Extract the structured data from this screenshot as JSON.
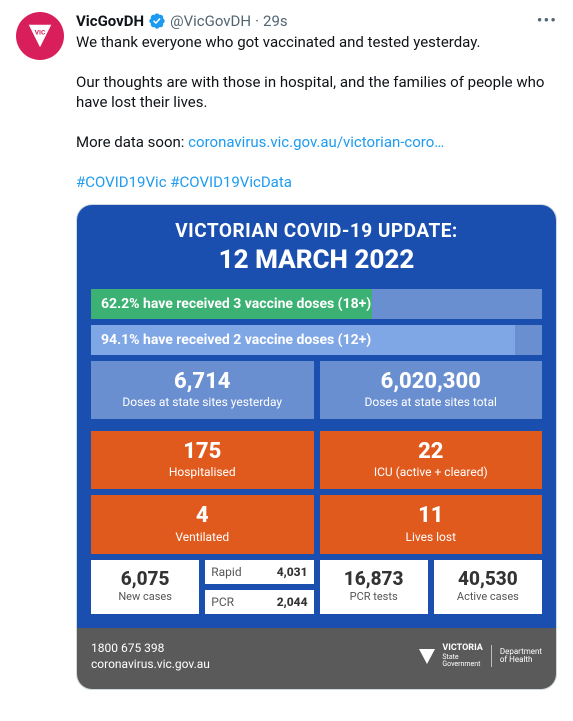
{
  "tweet": {
    "display_name": "VicGovDH",
    "handle": "@VicGovDH",
    "separator": "·",
    "time": "29s",
    "text_line1": "We thank everyone who got vaccinated and tested yesterday.",
    "text_line2": "Our thoughts are with those in hospital, and the families of people who have lost their lives.",
    "text_line3_prefix": "More data soon: ",
    "link_text": "coronavirus.vic.gov.au/victorian-coro…",
    "hashtag1": "#COVID19Vic",
    "hashtag2": "#COVID19VicData"
  },
  "card": {
    "colors": {
      "bg_main": "#1a4fb0",
      "footer_bg": "#5a5a5a",
      "bar_track": "#6a8fd0",
      "bar1_fill": "#3bb273",
      "bar2_fill": "#7fa7e6",
      "dose_cell": "#6a8fd0",
      "hosp_cell": "#e15a1d",
      "white_cell": "#ffffff"
    },
    "title": "VICTORIAN COVID-19 UPDATE:",
    "date": "12 MARCH 2022",
    "bars": [
      {
        "label": "62.2% have received 3 vaccine doses (18+)",
        "width_pct": 62.2
      },
      {
        "label": "94.1% have received 2 vaccine doses (12+)",
        "width_pct": 94.1
      }
    ],
    "dose_cells": [
      {
        "num": "6,714",
        "lab": "Doses at state sites yesterday"
      },
      {
        "num": "6,020,300",
        "lab": "Doses at state sites total"
      }
    ],
    "hosp_cells": [
      {
        "num": "175",
        "lab": "Hospitalised"
      },
      {
        "num": "22",
        "lab": "ICU (active + cleared)"
      },
      {
        "num": "4",
        "lab": "Ventilated"
      },
      {
        "num": "11",
        "lab": "Lives lost"
      }
    ],
    "bottom": {
      "new_cases": {
        "num": "6,075",
        "lab": "New cases"
      },
      "rapid": {
        "lab": "Rapid",
        "num": "4,031"
      },
      "pcr": {
        "lab": "PCR",
        "num": "2,044"
      },
      "pcr_tests": {
        "num": "16,873",
        "lab": "PCR tests"
      },
      "active": {
        "num": "40,530",
        "lab": "Active cases"
      }
    },
    "footer": {
      "phone": "1800 675 398",
      "url": "coronavirus.vic.gov.au",
      "state1": "VICTORIA",
      "state2": "State",
      "state3": "Government",
      "dept1": "Department",
      "dept2": "of Health"
    }
  }
}
